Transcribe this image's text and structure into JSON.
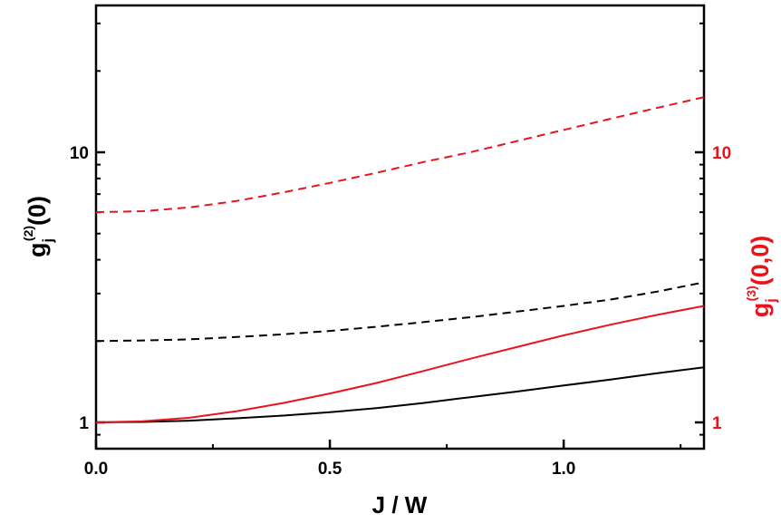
{
  "chart_data": {
    "type": "line",
    "xlabel": "J / W",
    "ylabel_left": {
      "base": "g",
      "sub": "j",
      "sup": "(2)",
      "tail": "(0)"
    },
    "ylabel_right": {
      "base": "g",
      "sub": "j",
      "sup": "(3)",
      "tail": "(0,0)"
    },
    "xlim": [
      0.0,
      1.3
    ],
    "x_ticks": [
      "0.0",
      "0.5",
      "1.0"
    ],
    "yscale": "log",
    "ylim": [
      0.8,
      30
    ],
    "y_ticks_left": [
      "1",
      "10"
    ],
    "y_ticks_right": [
      "1",
      "10"
    ],
    "grid": false,
    "colors": {
      "left_axis": "#000000",
      "right_axis": "#e8141b"
    },
    "series": [
      {
        "style": "solid",
        "color": "#000000",
        "axis": "left",
        "x": [
          0.0,
          0.1,
          0.2,
          0.3,
          0.4,
          0.5,
          0.6,
          0.7,
          0.8,
          0.9,
          1.0,
          1.1,
          1.2,
          1.3
        ],
        "values": [
          1.0,
          1.004,
          1.015,
          1.035,
          1.06,
          1.09,
          1.13,
          1.18,
          1.24,
          1.3,
          1.37,
          1.44,
          1.52,
          1.6
        ]
      },
      {
        "style": "dashed",
        "color": "#000000",
        "axis": "left",
        "x": [
          0.0,
          0.1,
          0.2,
          0.3,
          0.4,
          0.5,
          0.6,
          0.7,
          0.8,
          0.9,
          1.0,
          1.1,
          1.2,
          1.3
        ],
        "values": [
          2.0,
          2.01,
          2.03,
          2.07,
          2.12,
          2.18,
          2.26,
          2.35,
          2.45,
          2.57,
          2.7,
          2.85,
          3.05,
          3.3
        ]
      },
      {
        "style": "solid",
        "color": "#e8141b",
        "axis": "right",
        "x": [
          0.0,
          0.1,
          0.2,
          0.3,
          0.4,
          0.5,
          0.6,
          0.7,
          0.8,
          0.9,
          1.0,
          1.1,
          1.2,
          1.3
        ],
        "values": [
          1.0,
          1.01,
          1.04,
          1.1,
          1.18,
          1.28,
          1.4,
          1.55,
          1.72,
          1.9,
          2.1,
          2.3,
          2.5,
          2.7
        ]
      },
      {
        "style": "dashed",
        "color": "#e8141b",
        "axis": "right",
        "x": [
          0.0,
          0.1,
          0.2,
          0.3,
          0.4,
          0.5,
          0.6,
          0.7,
          0.8,
          0.9,
          1.0,
          1.1,
          1.2,
          1.3
        ],
        "values": [
          6.0,
          6.05,
          6.25,
          6.6,
          7.1,
          7.7,
          8.4,
          9.2,
          10.0,
          11.0,
          12.1,
          13.3,
          14.6,
          16.0
        ]
      }
    ]
  }
}
